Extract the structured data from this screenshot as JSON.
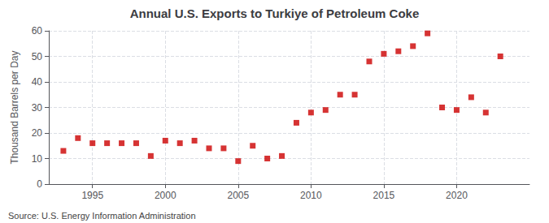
{
  "chart_data": {
    "type": "scatter",
    "title": "Annual U.S. Exports to Turkiye of Petroleum Coke",
    "ylabel": "Thousand Barrels per Day",
    "annotations": [
      "Source: U.S. Energy Information Administration"
    ],
    "x": [
      1993,
      1994,
      1995,
      1996,
      1997,
      1998,
      1999,
      2000,
      2001,
      2002,
      2003,
      2004,
      2005,
      2006,
      2007,
      2008,
      2009,
      2010,
      2011,
      2012,
      2013,
      2014,
      2015,
      2016,
      2017,
      2018,
      2019,
      2020,
      2021,
      2022,
      2023
    ],
    "values": [
      13,
      18,
      16,
      16,
      16,
      16,
      11,
      17,
      16,
      17,
      14,
      14,
      9,
      15,
      10,
      11,
      24,
      28,
      29,
      35,
      35,
      48,
      51,
      52,
      54,
      59,
      30,
      29,
      34,
      28,
      50
    ],
    "color": "#cc0000",
    "marker": "square",
    "xlim": [
      1992,
      2025
    ],
    "ylim": [
      0,
      60
    ],
    "xticks": [
      1995,
      2000,
      2005,
      2010,
      2015,
      2020
    ],
    "yticks": [
      0,
      10,
      20,
      30,
      40,
      50,
      60
    ],
    "grid": true
  }
}
